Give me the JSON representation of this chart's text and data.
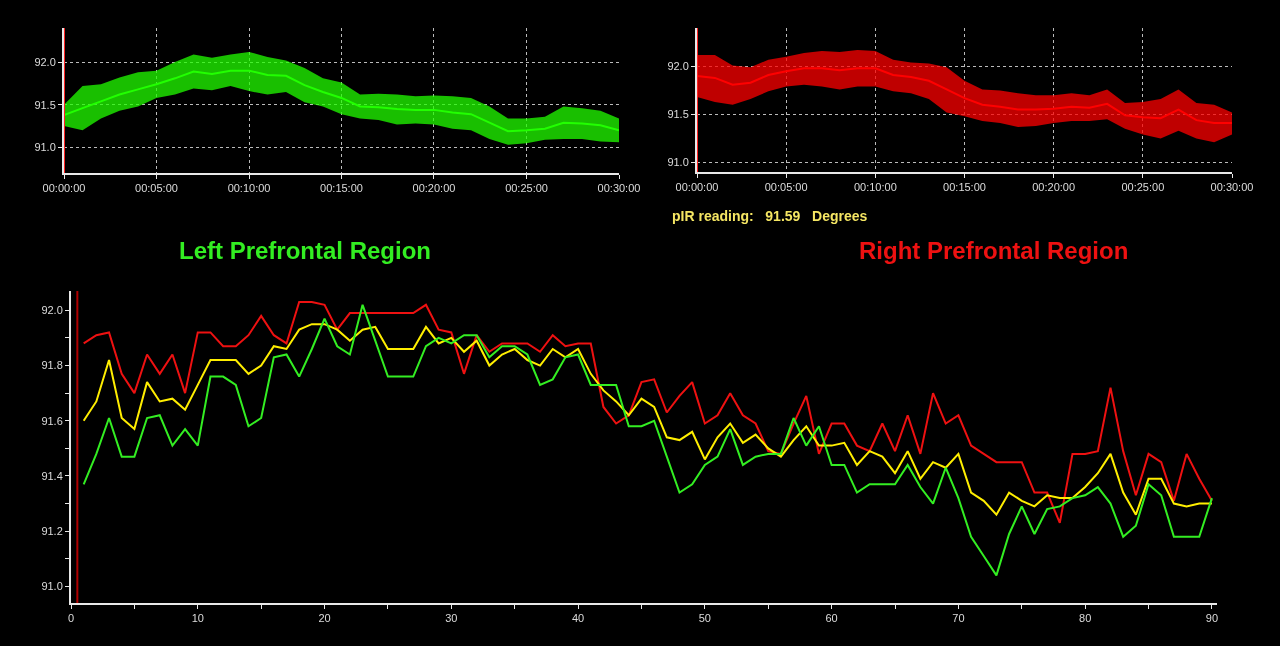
{
  "chart_data": [
    {
      "type": "line",
      "x": [
        0,
        0.0167,
        0.0333,
        0.05,
        0.0667,
        0.0833,
        0.1,
        0.1167,
        0.1333,
        0.15,
        0.1667,
        0.1833,
        0.2,
        0.2167,
        0.2333,
        0.25,
        0.2667,
        0.2833,
        0.3,
        0.3167,
        0.3333,
        0.35,
        0.3667,
        0.3833,
        0.4,
        0.4167,
        0.4333,
        0.45,
        0.4667,
        0.4833,
        0.5
      ],
      "series": [
        {
          "color": "#22ff00",
          "values": [
            91.38,
            91.46,
            91.54,
            91.62,
            91.68,
            91.74,
            91.81,
            91.89,
            91.86,
            91.9,
            91.9,
            91.85,
            91.84,
            91.73,
            91.65,
            91.58,
            91.48,
            91.47,
            91.45,
            91.44,
            91.44,
            91.41,
            91.39,
            91.29,
            91.19,
            91.2,
            91.22,
            91.29,
            91.28,
            91.26,
            91.2
          ],
          "lower": [
            91.25,
            91.2,
            91.34,
            91.43,
            91.48,
            91.58,
            91.62,
            91.69,
            91.67,
            91.72,
            91.66,
            91.62,
            91.65,
            91.53,
            91.48,
            91.39,
            91.34,
            91.32,
            91.27,
            91.28,
            91.27,
            91.22,
            91.2,
            91.1,
            91.03,
            91.05,
            91.09,
            91.1,
            91.1,
            91.07,
            91.06
          ],
          "upper": [
            91.5,
            91.72,
            91.74,
            91.82,
            91.88,
            91.9,
            92.0,
            92.09,
            92.05,
            92.09,
            92.12,
            92.06,
            92.02,
            91.93,
            91.81,
            91.76,
            91.62,
            91.63,
            91.62,
            91.6,
            91.61,
            91.6,
            91.58,
            91.48,
            91.34,
            91.34,
            91.36,
            91.48,
            91.46,
            91.43,
            91.34
          ]
        }
      ],
      "xlim": [
        0,
        0.5
      ],
      "xticks": [
        {
          "value": 0,
          "label": "00:00:00"
        },
        {
          "value": 0.0833,
          "label": "00:05:00"
        },
        {
          "value": 0.1667,
          "label": "00:10:00"
        },
        {
          "value": 0.25,
          "label": "00:15:00"
        },
        {
          "value": 0.3333,
          "label": "00:20:00"
        },
        {
          "value": 0.4167,
          "label": "00:25:00"
        },
        {
          "value": 0.5,
          "label": "00:30:00"
        }
      ],
      "ylim": [
        90.7,
        92.4
      ],
      "yticks": [
        {
          "value": 91,
          "label": "91.0"
        },
        91.5,
        {
          "value": 92,
          "label": "92.0"
        }
      ],
      "grid": true,
      "legend": false,
      "ref_lines": [
        {
          "axis": "x",
          "value": 0,
          "color": "#ff2020"
        }
      ]
    },
    {
      "type": "line",
      "x": [
        0,
        0.0167,
        0.0333,
        0.05,
        0.0667,
        0.0833,
        0.1,
        0.1167,
        0.1333,
        0.15,
        0.1667,
        0.1833,
        0.2,
        0.2167,
        0.2333,
        0.25,
        0.2667,
        0.2833,
        0.3,
        0.3167,
        0.3333,
        0.35,
        0.3667,
        0.3833,
        0.4,
        0.4167,
        0.4333,
        0.45,
        0.4667,
        0.4833,
        0.5
      ],
      "series": [
        {
          "color": "#ff0000",
          "values": [
            91.9,
            91.88,
            91.81,
            91.83,
            91.91,
            91.95,
            91.98,
            91.98,
            91.96,
            91.98,
            91.98,
            91.91,
            91.89,
            91.85,
            91.76,
            91.67,
            91.6,
            91.58,
            91.55,
            91.55,
            91.56,
            91.58,
            91.57,
            91.61,
            91.49,
            91.47,
            91.46,
            91.55,
            91.44,
            91.41,
            91.41
          ],
          "lower": [
            91.68,
            91.63,
            91.6,
            91.66,
            91.74,
            91.79,
            91.81,
            91.79,
            91.76,
            91.79,
            91.79,
            91.74,
            91.72,
            91.66,
            91.52,
            91.48,
            91.43,
            91.41,
            91.37,
            91.38,
            91.41,
            91.43,
            91.43,
            91.45,
            91.35,
            91.29,
            91.25,
            91.33,
            91.25,
            91.21,
            91.29
          ],
          "upper": [
            92.12,
            92.12,
            92.01,
            91.99,
            92.07,
            92.1,
            92.14,
            92.16,
            92.15,
            92.17,
            92.16,
            92.07,
            92.04,
            92.03,
            91.99,
            91.85,
            91.76,
            91.75,
            91.72,
            91.7,
            91.7,
            91.72,
            91.7,
            91.76,
            91.62,
            91.63,
            91.66,
            91.76,
            91.62,
            91.6,
            91.52
          ]
        }
      ],
      "xlim": [
        0,
        0.5
      ],
      "xticks": [
        {
          "value": 0,
          "label": "00:00:00"
        },
        {
          "value": 0.0833,
          "label": "00:05:00"
        },
        {
          "value": 0.1667,
          "label": "00:10:00"
        },
        {
          "value": 0.25,
          "label": "00:15:00"
        },
        {
          "value": 0.3333,
          "label": "00:20:00"
        },
        {
          "value": 0.4167,
          "label": "00:25:00"
        },
        {
          "value": 0.5,
          "label": "00:30:00"
        }
      ],
      "ylim": [
        90.9,
        92.4
      ],
      "yticks": [
        {
          "value": 91,
          "label": "91.0"
        },
        91.5,
        {
          "value": 92,
          "label": "92.0"
        }
      ],
      "grid": true,
      "legend": false,
      "ref_lines": [
        {
          "axis": "x",
          "value": 0,
          "color": "#ff2020"
        }
      ],
      "annotations": [
        "pIR reading:   91.59   Degrees"
      ]
    },
    {
      "type": "line",
      "x": [
        1,
        2,
        3,
        4,
        5,
        6,
        7,
        8,
        9,
        10,
        11,
        12,
        13,
        14,
        15,
        16,
        17,
        18,
        19,
        20,
        21,
        22,
        23,
        24,
        25,
        26,
        27,
        28,
        29,
        30,
        31,
        32,
        33,
        34,
        35,
        36,
        37,
        38,
        39,
        40,
        41,
        42,
        43,
        44,
        45,
        46,
        47,
        48,
        49,
        50,
        51,
        52,
        53,
        54,
        55,
        56,
        57,
        58,
        59,
        60,
        61,
        62,
        63,
        64,
        65,
        66,
        67,
        68,
        69,
        70,
        71,
        72,
        73,
        74,
        75,
        76,
        77,
        78,
        79,
        80,
        81,
        82,
        83,
        84,
        85,
        86,
        87,
        88,
        89,
        90
      ],
      "series": [
        {
          "name": "Right Prefrontal Region",
          "color": "#ee1111",
          "values": [
            91.88,
            91.91,
            91.92,
            91.77,
            91.7,
            91.84,
            91.77,
            91.84,
            91.7,
            91.92,
            91.92,
            91.87,
            91.87,
            91.91,
            91.98,
            91.91,
            91.88,
            92.03,
            92.03,
            92.02,
            91.93,
            91.99,
            91.99,
            91.99,
            91.99,
            91.99,
            91.99,
            92.02,
            91.93,
            91.92,
            91.77,
            91.91,
            91.85,
            91.88,
            91.88,
            91.88,
            91.85,
            91.91,
            91.87,
            91.88,
            91.88,
            91.65,
            91.59,
            91.62,
            91.74,
            91.75,
            91.63,
            91.69,
            91.74,
            91.59,
            91.62,
            91.7,
            91.62,
            91.59,
            91.49,
            91.48,
            91.59,
            91.69,
            91.48,
            91.59,
            91.59,
            91.51,
            91.49,
            91.59,
            91.49,
            91.62,
            91.48,
            91.7,
            91.59,
            91.62,
            91.51,
            91.48,
            91.45,
            91.45,
            91.45,
            91.34,
            91.34,
            91.23,
            91.48,
            91.48,
            91.49,
            91.72,
            91.49,
            91.33,
            91.48,
            91.45,
            91.31,
            91.48,
            91.39,
            91.31
          ]
        },
        {
          "color": "#ffee00",
          "values": [
            91.6,
            91.67,
            91.82,
            91.61,
            91.57,
            91.74,
            91.67,
            91.68,
            91.64,
            91.73,
            91.82,
            91.82,
            91.82,
            91.77,
            91.8,
            91.87,
            91.86,
            91.93,
            91.95,
            91.95,
            91.93,
            91.89,
            91.93,
            91.94,
            91.86,
            91.86,
            91.86,
            91.94,
            91.88,
            91.9,
            91.85,
            91.89,
            91.8,
            91.84,
            91.86,
            91.82,
            91.8,
            91.86,
            91.83,
            91.86,
            91.77,
            91.71,
            91.67,
            91.62,
            91.68,
            91.65,
            91.54,
            91.53,
            91.56,
            91.46,
            91.54,
            91.59,
            91.52,
            91.55,
            91.5,
            91.47,
            91.53,
            91.58,
            91.51,
            91.51,
            91.52,
            91.44,
            91.49,
            91.47,
            91.41,
            91.49,
            91.39,
            91.45,
            91.43,
            91.48,
            91.34,
            91.31,
            91.26,
            91.34,
            91.31,
            91.29,
            91.33,
            91.32,
            91.32,
            91.36,
            91.41,
            91.48,
            91.34,
            91.26,
            91.39,
            91.39,
            91.3,
            91.29,
            91.3,
            91.3
          ]
        },
        {
          "name": "Left Prefrontal Region",
          "color": "#33ee22",
          "values": [
            91.37,
            91.48,
            91.61,
            91.47,
            91.47,
            91.61,
            91.62,
            91.51,
            91.57,
            91.51,
            91.76,
            91.76,
            91.73,
            91.58,
            91.61,
            91.83,
            91.84,
            91.76,
            91.86,
            91.97,
            91.87,
            91.84,
            92.02,
            91.89,
            91.76,
            91.76,
            91.76,
            91.87,
            91.9,
            91.88,
            91.91,
            91.91,
            91.83,
            91.87,
            91.87,
            91.84,
            91.73,
            91.75,
            91.83,
            91.84,
            91.73,
            91.73,
            91.73,
            91.58,
            91.58,
            91.6,
            91.47,
            91.34,
            91.37,
            91.44,
            91.47,
            91.57,
            91.44,
            91.47,
            91.48,
            91.48,
            91.61,
            91.51,
            91.58,
            91.44,
            91.44,
            91.34,
            91.37,
            91.37,
            91.37,
            91.44,
            91.36,
            91.3,
            91.43,
            91.32,
            91.18,
            91.11,
            91.04,
            91.19,
            91.29,
            91.19,
            91.28,
            91.29,
            91.32,
            91.33,
            91.36,
            91.3,
            91.18,
            91.22,
            91.37,
            91.33,
            91.18,
            91.18,
            91.18,
            91.32
          ]
        }
      ],
      "xlim": [
        0,
        90.4
      ],
      "xticks": [
        0,
        {
          "value": 5,
          "label": null
        },
        10,
        {
          "value": 15,
          "label": null
        },
        20,
        {
          "value": 25,
          "label": null
        },
        30,
        {
          "value": 35,
          "label": null
        },
        40,
        {
          "value": 45,
          "label": null
        },
        50,
        {
          "value": 55,
          "label": null
        },
        60,
        {
          "value": 65,
          "label": null
        },
        70,
        {
          "value": 75,
          "label": null
        },
        80,
        {
          "value": 85,
          "label": null
        },
        90
      ],
      "ylim": [
        90.94,
        92.07
      ],
      "yticks": [
        {
          "value": 91,
          "label": "91.0"
        },
        {
          "value": 91.1,
          "label": null
        },
        91.2,
        {
          "value": 91.3,
          "label": null
        },
        91.4,
        {
          "value": 91.5,
          "label": null
        },
        91.6,
        {
          "value": 91.7,
          "label": null
        },
        91.8,
        {
          "value": 91.9,
          "label": null
        },
        {
          "value": 92,
          "label": "92.0"
        }
      ],
      "legend": false,
      "ref_lines": [
        {
          "axis": "x",
          "value": 0.5,
          "color": "#b00000"
        }
      ]
    }
  ]
}
